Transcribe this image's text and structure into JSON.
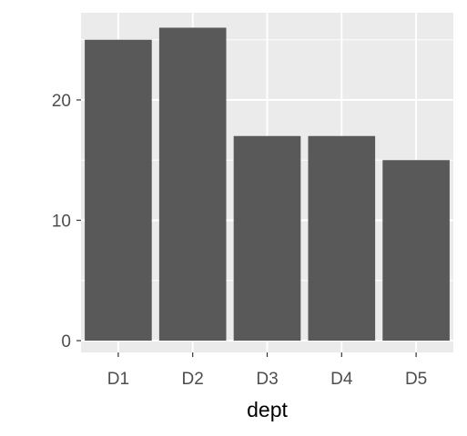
{
  "chart_data": {
    "type": "bar",
    "categories": [
      "D1",
      "D2",
      "D3",
      "D4",
      "D5"
    ],
    "values": [
      25,
      26,
      17,
      17,
      15
    ],
    "xlabel": "dept",
    "ylabel": "",
    "ylim": [
      0,
      27.3
    ],
    "yticks": [
      0,
      10,
      20
    ],
    "y_minor_ticks": [
      5,
      15,
      25
    ],
    "grid": true,
    "legend": "none",
    "colors": {
      "panel": "#ebebeb",
      "grid": "#ffffff",
      "bar": "#595959",
      "tick_text": "#4d4d4d",
      "axis_title": "#000000",
      "tick_mark": "#333333"
    }
  }
}
